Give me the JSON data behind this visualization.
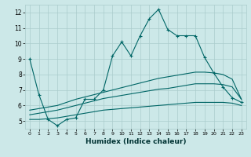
{
  "title": "",
  "xlabel": "Humidex (Indice chaleur)",
  "xlim": [
    -0.5,
    23.5
  ],
  "ylim": [
    4.5,
    12.5
  ],
  "yticks": [
    5,
    6,
    7,
    8,
    9,
    10,
    11,
    12
  ],
  "xticks": [
    0,
    1,
    2,
    3,
    4,
    5,
    6,
    7,
    8,
    9,
    10,
    11,
    12,
    13,
    14,
    15,
    16,
    17,
    18,
    19,
    20,
    21,
    22,
    23
  ],
  "background_color": "#cce8e8",
  "grid_color": "#aacccc",
  "line_color": "#006666",
  "line1_x": [
    0,
    1,
    2,
    3,
    4,
    5,
    6,
    7,
    8,
    9,
    10,
    11,
    12,
    13,
    14,
    15,
    16,
    17,
    18,
    19,
    20,
    21,
    22,
    23
  ],
  "line1_y": [
    9.0,
    6.7,
    5.1,
    4.7,
    5.1,
    5.2,
    6.4,
    6.4,
    7.0,
    9.2,
    10.1,
    9.2,
    10.5,
    11.6,
    12.2,
    10.9,
    10.5,
    10.5,
    10.5,
    9.1,
    8.1,
    7.2,
    6.5,
    6.2
  ],
  "line2_x": [
    0,
    1,
    2,
    3,
    4,
    5,
    6,
    7,
    8,
    9,
    10,
    11,
    12,
    13,
    14,
    15,
    16,
    17,
    18,
    19,
    20,
    21,
    22,
    23
  ],
  "line2_y": [
    5.1,
    5.1,
    5.15,
    5.2,
    5.3,
    5.4,
    5.5,
    5.6,
    5.7,
    5.75,
    5.8,
    5.85,
    5.9,
    5.95,
    6.0,
    6.05,
    6.1,
    6.15,
    6.2,
    6.2,
    6.2,
    6.2,
    6.15,
    6.0
  ],
  "line3_x": [
    0,
    1,
    2,
    3,
    4,
    5,
    6,
    7,
    8,
    9,
    10,
    11,
    12,
    13,
    14,
    15,
    16,
    17,
    18,
    19,
    20,
    21,
    22,
    23
  ],
  "line3_y": [
    5.4,
    5.5,
    5.6,
    5.7,
    5.85,
    6.0,
    6.15,
    6.3,
    6.45,
    6.55,
    6.65,
    6.75,
    6.85,
    6.95,
    7.05,
    7.1,
    7.2,
    7.3,
    7.4,
    7.4,
    7.4,
    7.35,
    7.2,
    6.4
  ],
  "line4_x": [
    0,
    1,
    2,
    3,
    4,
    5,
    6,
    7,
    8,
    9,
    10,
    11,
    12,
    13,
    14,
    15,
    16,
    17,
    18,
    19,
    20,
    21,
    22,
    23
  ],
  "line4_y": [
    5.7,
    5.8,
    5.9,
    6.0,
    6.2,
    6.4,
    6.55,
    6.7,
    6.85,
    7.0,
    7.15,
    7.3,
    7.45,
    7.6,
    7.75,
    7.85,
    7.95,
    8.05,
    8.15,
    8.15,
    8.1,
    8.0,
    7.7,
    6.4
  ]
}
